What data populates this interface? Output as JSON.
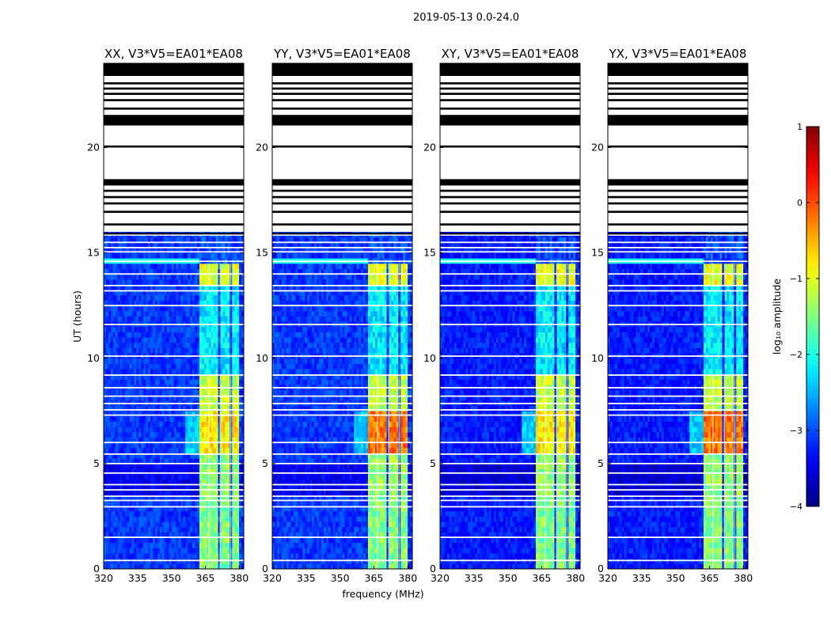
{
  "chart_data": {
    "type": "heatmap",
    "suptitle": "2019-05-13 0.0-24.0",
    "xlabel": "frequency (MHz)",
    "ylabel": "UT (hours)",
    "xlim": [
      320,
      382
    ],
    "ylim": [
      0,
      24
    ],
    "xticks": [
      320,
      335,
      350,
      365,
      380
    ],
    "yticks": [
      0,
      5,
      10,
      15,
      20
    ],
    "panels": [
      {
        "title": "XX, V3*V5=EA01*EA08",
        "pol": "XX"
      },
      {
        "title": "YY, V3*V5=EA01*EA08",
        "pol": "YY"
      },
      {
        "title": "XY, V3*V5=EA01*EA08",
        "pol": "XY"
      },
      {
        "title": "YX, V3*V5=EA01*EA08",
        "pol": "YX"
      }
    ],
    "colorbar": {
      "label": "log₁₀ amplitude",
      "range": [
        -4,
        1
      ],
      "ticks": [
        1,
        0,
        -1,
        -2,
        -3,
        -4
      ],
      "tick_labels": [
        "1",
        "0",
        "−1",
        "−2",
        "−3",
        "−4"
      ],
      "colormap": "jet"
    },
    "rfi_band_mhz": [
      362,
      379
    ],
    "rfi_subbands_mhz": [
      [
        362,
        366
      ],
      [
        367,
        371
      ],
      [
        372,
        376
      ],
      [
        376.5,
        379.5
      ]
    ],
    "flagged_black_hours": [
      [
        21.0,
        21.6
      ],
      [
        18.2,
        18.5
      ],
      [
        23.4,
        24.0
      ],
      [
        19.9,
        20.05
      ]
    ],
    "high_amplitude_hours": [
      [
        5.5,
        7.4
      ],
      [
        13.4,
        14.5
      ],
      [
        0.2,
        3.4
      ],
      [
        3.6,
        9.2
      ]
    ]
  }
}
